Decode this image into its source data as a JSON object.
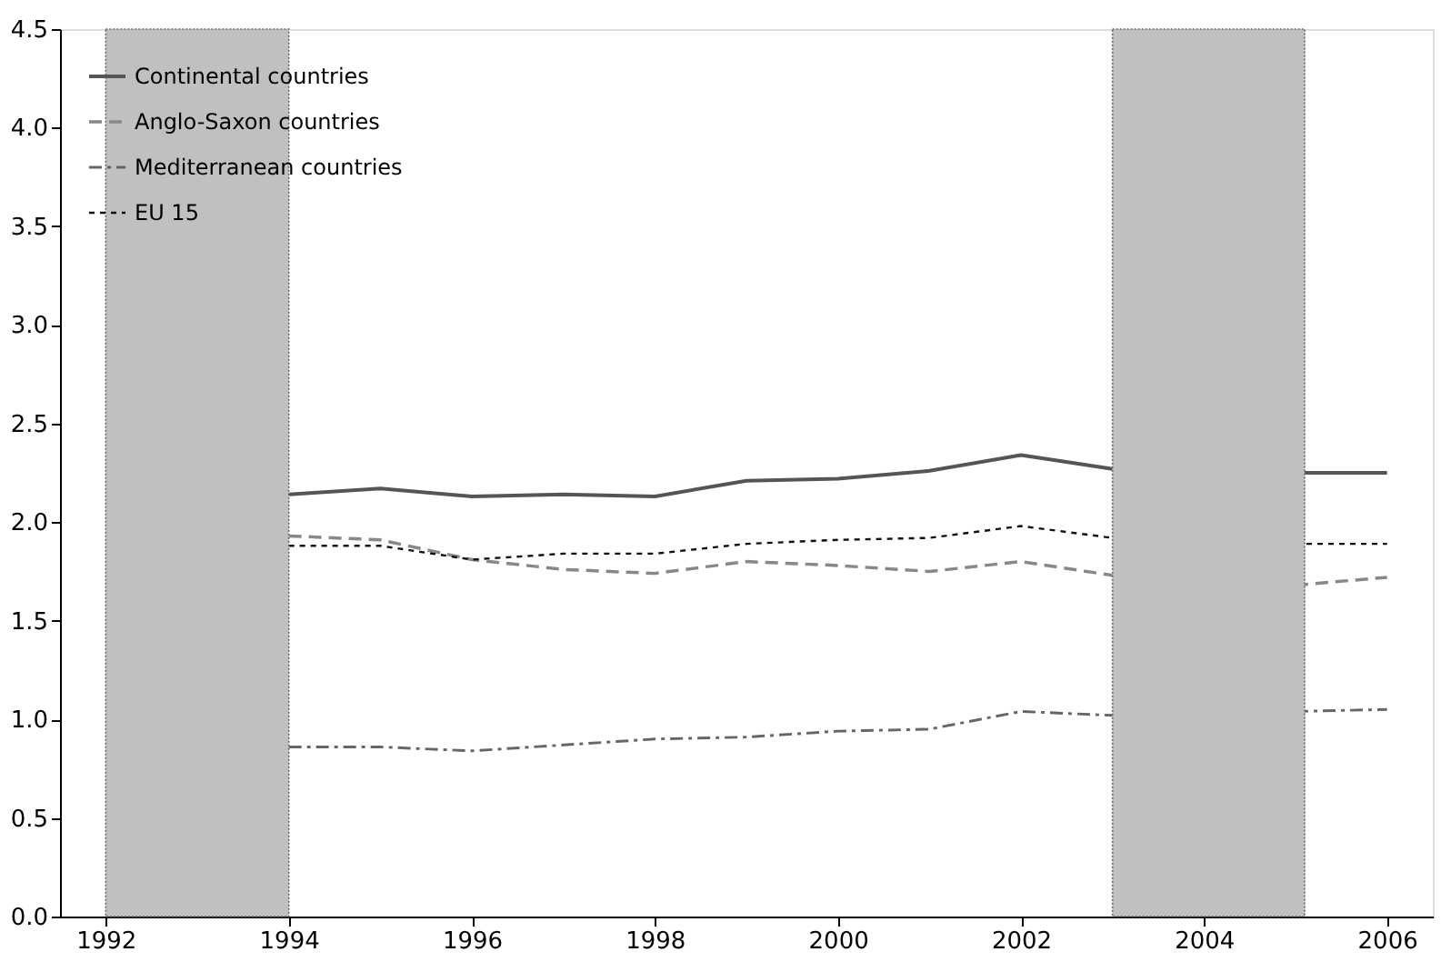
{
  "chart_data": {
    "type": "line",
    "x": [
      1994,
      1995,
      1996,
      1997,
      1998,
      1999,
      2000,
      2001,
      2002,
      2003,
      2004,
      2005,
      2006
    ],
    "series": [
      {
        "name": "Continental countries",
        "color": "#555555",
        "line_style": "solid",
        "values": [
          2.14,
          2.17,
          2.13,
          2.14,
          2.13,
          2.21,
          2.22,
          2.26,
          2.34,
          2.27,
          null,
          2.25,
          2.25
        ]
      },
      {
        "name": "Anglo-Saxon countries",
        "color": "#888888",
        "line_style": "dashed",
        "values": [
          1.93,
          1.91,
          1.81,
          1.76,
          1.74,
          1.8,
          1.78,
          1.75,
          1.8,
          1.73,
          null,
          1.68,
          1.72
        ]
      },
      {
        "name": "Mediterranean countries",
        "color": "#666666",
        "line_style": "dashdot",
        "values": [
          0.86,
          0.86,
          0.84,
          0.87,
          0.9,
          0.91,
          0.94,
          0.95,
          1.04,
          1.02,
          null,
          1.04,
          1.05
        ]
      },
      {
        "name": "EU 15",
        "color": "#111111",
        "line_style": "dotted",
        "values": [
          1.88,
          1.88,
          1.81,
          1.84,
          1.84,
          1.89,
          1.91,
          1.92,
          1.98,
          1.92,
          null,
          1.89,
          1.89
        ]
      }
    ],
    "xlim": [
      1991.5,
      2006.5
    ],
    "xticks": [
      1992,
      1994,
      1996,
      1998,
      2000,
      2002,
      2004,
      2006
    ],
    "ylim": [
      0,
      4.5
    ],
    "yticks": [
      {
        "value": 0,
        "label": "0.0"
      },
      {
        "value": 0.5,
        "label": "0.5"
      },
      {
        "value": 1,
        "label": "1.0"
      },
      {
        "value": 1.5,
        "label": "1.5"
      },
      {
        "value": 2,
        "label": "2.0"
      },
      {
        "value": 2.5,
        "label": "2.5"
      },
      {
        "value": 3,
        "label": "3.0"
      },
      {
        "value": 3.5,
        "label": "3.5"
      },
      {
        "value": 4,
        "label": "4.0"
      },
      {
        "value": 4.5,
        "label": "4.5"
      }
    ],
    "bands": [
      {
        "axis": "x",
        "from": 1992,
        "to": 1994,
        "color": "#c0c0c0"
      },
      {
        "axis": "x",
        "from": 2003,
        "to": 2005.1,
        "color": "#c0c0c0"
      }
    ],
    "grid": false,
    "legend": "top left",
    "marker": "none"
  }
}
